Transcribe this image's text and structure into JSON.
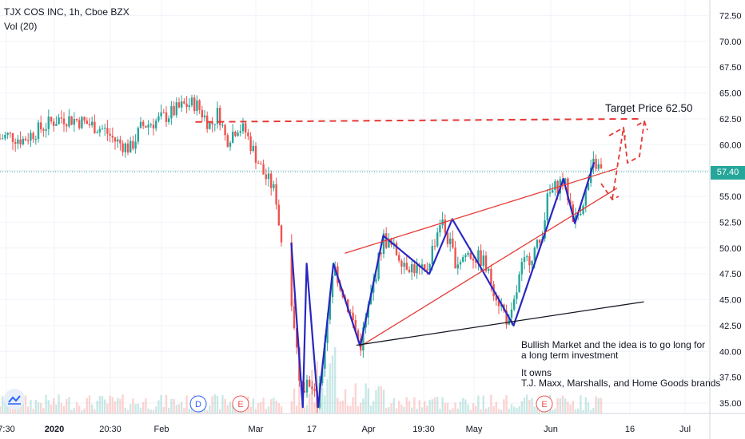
{
  "header": {
    "symbol_line": "TJX COS INC, 1h, Cboe BZX",
    "indicator_line": "Vol (20)"
  },
  "price_axis": {
    "ticks": [
      "72.50",
      "70.00",
      "67.50",
      "65.00",
      "62.50",
      "60.00",
      "57.50",
      "55.00",
      "52.50",
      "50.00",
      "47.50",
      "45.00",
      "42.50",
      "40.00",
      "37.50",
      "35.00"
    ],
    "current_price": "57.40",
    "current_price_color": "#26a69a"
  },
  "time_axis": {
    "ticks": [
      "7:30",
      "2020",
      "20:30",
      "Feb",
      "Mar",
      "17",
      "Apr",
      "19:30",
      "May",
      "Jun",
      "16",
      "Jul"
    ]
  },
  "event_markers": [
    {
      "letter": "D",
      "color": "#2962ff"
    },
    {
      "letter": "E",
      "color": "#ef5350"
    },
    {
      "letter": "E",
      "color": "#ef5350"
    }
  ],
  "annotations": {
    "target_label": "Target Price 62.50",
    "note_lines": [
      "Bullish Market and the idea is to go long for",
      "a long term investment",
      "",
      "It owns",
      "T.J. Maxx, Marshalls, and Home Goods brands"
    ]
  },
  "colors": {
    "up": "#26a69a",
    "down": "#ef5350",
    "pattern_line": "#2727c2",
    "trend_red": "#e53935",
    "trend_black": "#131722",
    "target_dash": "#e53935"
  },
  "chart_data": {
    "type": "candlestick",
    "title": "TJX COS INC, 1h, Cboe BZX",
    "x_range": [
      "2019-12-31",
      "2020-07-03"
    ],
    "ylim": [
      34,
      74
    ],
    "y_scale": "linear",
    "grid": true,
    "current_price": 57.4,
    "target_price": 62.5,
    "close_path": [
      {
        "x": "2019-12-31",
        "y": 60.6
      },
      {
        "x": "2020-01-02",
        "y": 60.9
      },
      {
        "x": "2020-01-06",
        "y": 60.5
      },
      {
        "x": "2020-01-09",
        "y": 61.2
      },
      {
        "x": "2020-01-13",
        "y": 62.1
      },
      {
        "x": "2020-01-16",
        "y": 62.6
      },
      {
        "x": "2020-01-20",
        "y": 62.4
      },
      {
        "x": "2020-01-23",
        "y": 62.0
      },
      {
        "x": "2020-01-27",
        "y": 61.5
      },
      {
        "x": "2020-01-30",
        "y": 60.4
      },
      {
        "x": "2020-02-03",
        "y": 59.6
      },
      {
        "x": "2020-02-06",
        "y": 61.8
      },
      {
        "x": "2020-02-10",
        "y": 62.3
      },
      {
        "x": "2020-02-13",
        "y": 62.9
      },
      {
        "x": "2020-02-17",
        "y": 63.8
      },
      {
        "x": "2020-02-20",
        "y": 64.0
      },
      {
        "x": "2020-02-24",
        "y": 61.8
      },
      {
        "x": "2020-02-26",
        "y": 63.2
      },
      {
        "x": "2020-02-28",
        "y": 60.4
      },
      {
        "x": "2020-03-02",
        "y": 61.8
      },
      {
        "x": "2020-03-04",
        "y": 61.3
      },
      {
        "x": "2020-03-06",
        "y": 59.5
      },
      {
        "x": "2020-03-09",
        "y": 57.0
      },
      {
        "x": "2020-03-11",
        "y": 56.0
      },
      {
        "x": "2020-03-12",
        "y": 55.0
      },
      {
        "x": "2020-03-13",
        "y": 51.6
      },
      {
        "x": "2020-03-16",
        "y": 45.5
      },
      {
        "x": "2020-03-18",
        "y": 38.0
      },
      {
        "x": "2020-03-19",
        "y": 35.3
      },
      {
        "x": "2020-03-20",
        "y": 37.8
      },
      {
        "x": "2020-03-23",
        "y": 34.6
      },
      {
        "x": "2020-03-25",
        "y": 42.0
      },
      {
        "x": "2020-03-27",
        "y": 48.4
      },
      {
        "x": "2020-04-01",
        "y": 43.0
      },
      {
        "x": "2020-04-03",
        "y": 40.5
      },
      {
        "x": "2020-04-09",
        "y": 51.0
      },
      {
        "x": "2020-04-15",
        "y": 48.5
      },
      {
        "x": "2020-04-20",
        "y": 47.5
      },
      {
        "x": "2020-04-24",
        "y": 52.8
      },
      {
        "x": "2020-04-28",
        "y": 48.6
      },
      {
        "x": "2020-05-01",
        "y": 49.5
      },
      {
        "x": "2020-05-05",
        "y": 48.8
      },
      {
        "x": "2020-05-09",
        "y": 45.0
      },
      {
        "x": "2020-05-12",
        "y": 42.5
      },
      {
        "x": "2020-05-15",
        "y": 48.0
      },
      {
        "x": "2020-05-20",
        "y": 50.6
      },
      {
        "x": "2020-05-22",
        "y": 55.0
      },
      {
        "x": "2020-05-26",
        "y": 56.7
      },
      {
        "x": "2020-05-29",
        "y": 52.5
      },
      {
        "x": "2020-06-01",
        "y": 55.5
      },
      {
        "x": "2020-06-03",
        "y": 58.3
      },
      {
        "x": "2020-06-05",
        "y": 57.4
      }
    ],
    "annotations_lines": [
      {
        "name": "wave-pattern",
        "points": [
          {
            "x": "2020-03-16",
            "y": 50.5
          },
          {
            "x": "2020-03-19",
            "y": 34.6
          },
          {
            "x": "2020-03-20",
            "y": 48.5
          },
          {
            "x": "2020-03-23",
            "y": 34.6
          },
          {
            "x": "2020-03-27",
            "y": 48.5
          },
          {
            "x": "2020-04-03",
            "y": 40.5
          },
          {
            "x": "2020-04-09",
            "y": 51.2
          },
          {
            "x": "2020-04-21",
            "y": 47.5
          },
          {
            "x": "2020-04-27",
            "y": 52.8
          },
          {
            "x": "2020-05-04",
            "y": 48.4
          },
          {
            "x": "2020-05-13",
            "y": 42.5
          },
          {
            "x": "2020-05-26",
            "y": 56.7
          },
          {
            "x": "2020-05-29",
            "y": 52.4
          },
          {
            "x": "2020-06-03",
            "y": 58.3
          }
        ]
      },
      {
        "name": "upper-trendline",
        "points": [
          {
            "x": "2020-03-30",
            "y": 49.5
          },
          {
            "x": "2020-06-09",
            "y": 57.7
          }
        ]
      },
      {
        "name": "lower-trendline",
        "points": [
          {
            "x": "2020-04-03",
            "y": 40.5
          },
          {
            "x": "2020-06-09",
            "y": 55.8
          }
        ]
      },
      {
        "name": "support-line",
        "points": [
          {
            "x": "2020-04-02",
            "y": 40.6
          },
          {
            "x": "2020-06-16",
            "y": 44.8
          }
        ]
      },
      {
        "name": "target-line",
        "points": [
          {
            "x": "2020-02-20",
            "y": 62.2
          },
          {
            "x": "2020-06-15",
            "y": 62.5
          }
        ]
      }
    ],
    "volume_indicator": "Vol (20)"
  }
}
